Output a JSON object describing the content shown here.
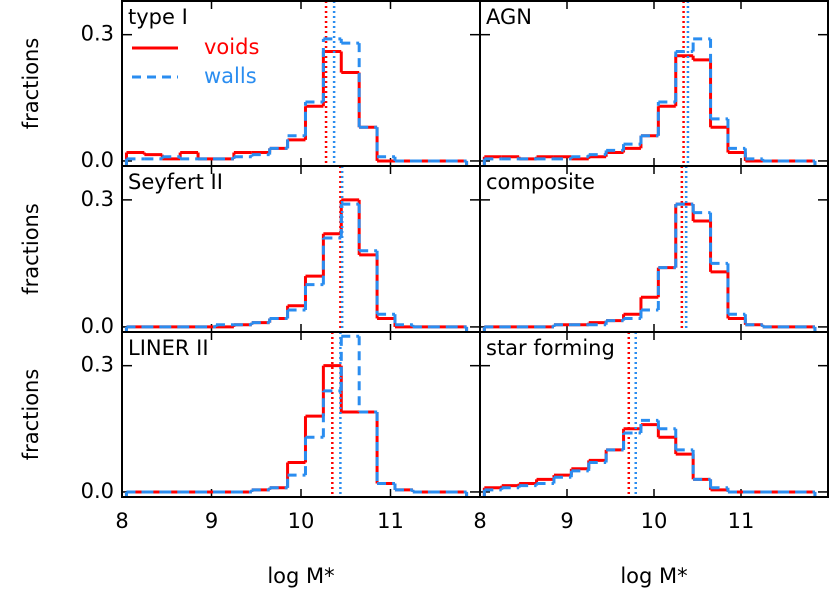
{
  "chart_data": [
    {
      "type": "histogram",
      "title": "type I",
      "legend": "upper left",
      "bins": [
        8.05,
        8.25,
        8.45,
        8.65,
        8.85,
        9.05,
        9.25,
        9.45,
        9.65,
        9.85,
        10.05,
        10.25,
        10.45,
        10.65,
        10.85,
        11.05,
        11.25,
        11.45,
        11.65,
        11.85
      ],
      "series": [
        {
          "name": "voids",
          "color": "#ff0000",
          "linestyle": "solid",
          "median": 10.28,
          "values": [
            0.02,
            0.015,
            0.005,
            0.02,
            0.005,
            0.005,
            0.02,
            0.02,
            0.03,
            0.05,
            0.13,
            0.26,
            0.21,
            0.08,
            0,
            0,
            0,
            0,
            0
          ]
        },
        {
          "name": "walls",
          "color": "#2a8df0",
          "linestyle": "dashed",
          "median": 10.37,
          "values": [
            0.005,
            0.005,
            0.01,
            0.005,
            0.005,
            0.005,
            0.01,
            0.015,
            0.03,
            0.06,
            0.14,
            0.29,
            0.28,
            0.08,
            0.01,
            0,
            0,
            0,
            0
          ]
        }
      ],
      "xlim": [
        8,
        12
      ],
      "xticks": [
        8,
        9,
        10,
        11
      ],
      "ylim": [
        -0.012,
        0.38
      ],
      "yticks": [
        {
          "value": 0,
          "label": "0.0"
        },
        0.3
      ],
      "ylabel": "fractions"
    },
    {
      "type": "histogram",
      "title": "AGN",
      "bins": [
        8.05,
        8.25,
        8.45,
        8.65,
        8.85,
        9.05,
        9.25,
        9.45,
        9.65,
        9.85,
        10.05,
        10.25,
        10.45,
        10.65,
        10.85,
        11.05,
        11.25,
        11.45,
        11.65,
        11.85
      ],
      "series": [
        {
          "name": "voids",
          "color": "#ff0000",
          "linestyle": "solid",
          "median": 10.34,
          "values": [
            0.01,
            0.01,
            0.005,
            0.01,
            0.01,
            0.005,
            0.01,
            0.02,
            0.03,
            0.06,
            0.13,
            0.25,
            0.24,
            0.08,
            0.02,
            0,
            0,
            0,
            0
          ]
        },
        {
          "name": "walls",
          "color": "#2a8df0",
          "linestyle": "dashed",
          "median": 10.39,
          "values": [
            0.005,
            0.005,
            0.005,
            0.005,
            0.005,
            0.01,
            0.015,
            0.025,
            0.04,
            0.06,
            0.14,
            0.26,
            0.29,
            0.1,
            0.03,
            0.005,
            0,
            0,
            0
          ]
        }
      ],
      "xlim": [
        8,
        12
      ],
      "xticks": [
        8,
        9,
        10,
        11
      ],
      "ylim": [
        -0.012,
        0.38
      ],
      "yticks": [
        0,
        0.3
      ]
    },
    {
      "type": "histogram",
      "title": "Seyfert II",
      "bins": [
        8.05,
        8.25,
        8.45,
        8.65,
        8.85,
        9.05,
        9.25,
        9.45,
        9.65,
        9.85,
        10.05,
        10.25,
        10.45,
        10.65,
        10.85,
        11.05,
        11.25,
        11.45,
        11.65,
        11.85
      ],
      "series": [
        {
          "name": "voids",
          "color": "#ff0000",
          "linestyle": "solid",
          "median": 10.44,
          "values": [
            0,
            0,
            0,
            0,
            0,
            0,
            0.005,
            0.01,
            0.02,
            0.05,
            0.12,
            0.22,
            0.3,
            0.17,
            0.02,
            0,
            0,
            0,
            0
          ]
        },
        {
          "name": "walls",
          "color": "#2a8df0",
          "linestyle": "dashed",
          "median": 10.46,
          "values": [
            0,
            0,
            0,
            0,
            0,
            0.005,
            0.005,
            0.01,
            0.02,
            0.04,
            0.1,
            0.21,
            0.29,
            0.18,
            0.03,
            0.005,
            0,
            0,
            0
          ]
        }
      ],
      "xlim": [
        8,
        12
      ],
      "xticks": [
        8,
        9,
        10,
        11
      ],
      "ylim": [
        -0.012,
        0.38
      ],
      "yticks": [
        {
          "value": 0,
          "label": "0.0"
        },
        0.3
      ],
      "ylabel": "fractions"
    },
    {
      "type": "histogram",
      "title": "composite",
      "bins": [
        8.05,
        8.25,
        8.45,
        8.65,
        8.85,
        9.05,
        9.25,
        9.45,
        9.65,
        9.85,
        10.05,
        10.25,
        10.45,
        10.65,
        10.85,
        11.05,
        11.25,
        11.45,
        11.65,
        11.85
      ],
      "series": [
        {
          "name": "voids",
          "color": "#ff0000",
          "linestyle": "solid",
          "median": 10.32,
          "values": [
            0,
            0,
            0,
            0,
            0.005,
            0.005,
            0.01,
            0.015,
            0.03,
            0.07,
            0.14,
            0.29,
            0.25,
            0.13,
            0.02,
            0.005,
            0,
            0,
            0
          ]
        },
        {
          "name": "walls",
          "color": "#2a8df0",
          "linestyle": "dashed",
          "median": 10.37,
          "values": [
            0,
            0,
            0,
            0,
            0.005,
            0.005,
            0.005,
            0.015,
            0.02,
            0.04,
            0.14,
            0.29,
            0.27,
            0.15,
            0.03,
            0.005,
            0,
            0,
            0
          ]
        }
      ],
      "xlim": [
        8,
        12
      ],
      "xticks": [
        8,
        9,
        10,
        11
      ],
      "ylim": [
        -0.012,
        0.38
      ],
      "yticks": [
        0,
        0.3
      ]
    },
    {
      "type": "histogram",
      "title": "LINER II",
      "bins": [
        8.05,
        8.25,
        8.45,
        8.65,
        8.85,
        9.05,
        9.25,
        9.45,
        9.65,
        9.85,
        10.05,
        10.25,
        10.45,
        10.65,
        10.85,
        11.05,
        11.25,
        11.45,
        11.65,
        11.85
      ],
      "series": [
        {
          "name": "voids",
          "color": "#ff0000",
          "linestyle": "solid",
          "median": 10.35,
          "values": [
            0,
            0,
            0,
            0,
            0,
            0,
            0,
            0.005,
            0.01,
            0.07,
            0.18,
            0.3,
            0.19,
            0.19,
            0.02,
            0.005,
            0,
            0,
            0
          ]
        },
        {
          "name": "walls",
          "color": "#2a8df0",
          "linestyle": "dashed",
          "median": 10.44,
          "values": [
            0,
            0,
            0,
            0,
            0,
            0,
            0,
            0.005,
            0.01,
            0.04,
            0.13,
            0.24,
            0.37,
            0.19,
            0.02,
            0.005,
            0,
            0,
            0
          ]
        }
      ],
      "xlim": [
        8,
        12
      ],
      "xticks": [
        8,
        9,
        10,
        11
      ],
      "ylim": [
        -0.012,
        0.38
      ],
      "yticks": [
        {
          "value": 0,
          "label": "0.0"
        },
        0.3
      ],
      "ylabel": "fractions",
      "xlabel": "log M*"
    },
    {
      "type": "histogram",
      "title": "star forming",
      "bins": [
        8.05,
        8.25,
        8.45,
        8.65,
        8.85,
        9.05,
        9.25,
        9.45,
        9.65,
        9.85,
        10.05,
        10.25,
        10.45,
        10.65,
        10.85,
        11.05,
        11.25,
        11.45,
        11.65,
        11.85
      ],
      "series": [
        {
          "name": "voids",
          "color": "#ff0000",
          "linestyle": "solid",
          "median": 9.71,
          "values": [
            0.01,
            0.015,
            0.02,
            0.03,
            0.04,
            0.055,
            0.075,
            0.1,
            0.15,
            0.16,
            0.13,
            0.09,
            0.03,
            0.005,
            0,
            0,
            0,
            0,
            0
          ]
        },
        {
          "name": "walls",
          "color": "#2a8df0",
          "linestyle": "dashed",
          "median": 9.79,
          "values": [
            0.005,
            0.01,
            0.015,
            0.02,
            0.035,
            0.05,
            0.07,
            0.1,
            0.14,
            0.17,
            0.15,
            0.1,
            0.03,
            0.01,
            0,
            0,
            0,
            0,
            0
          ]
        }
      ],
      "xlim": [
        8,
        12
      ],
      "xticks": [
        8,
        9,
        10,
        11
      ],
      "ylim": [
        -0.012,
        0.38
      ],
      "yticks": [
        0,
        0.3
      ],
      "xlabel": "log M*"
    }
  ]
}
